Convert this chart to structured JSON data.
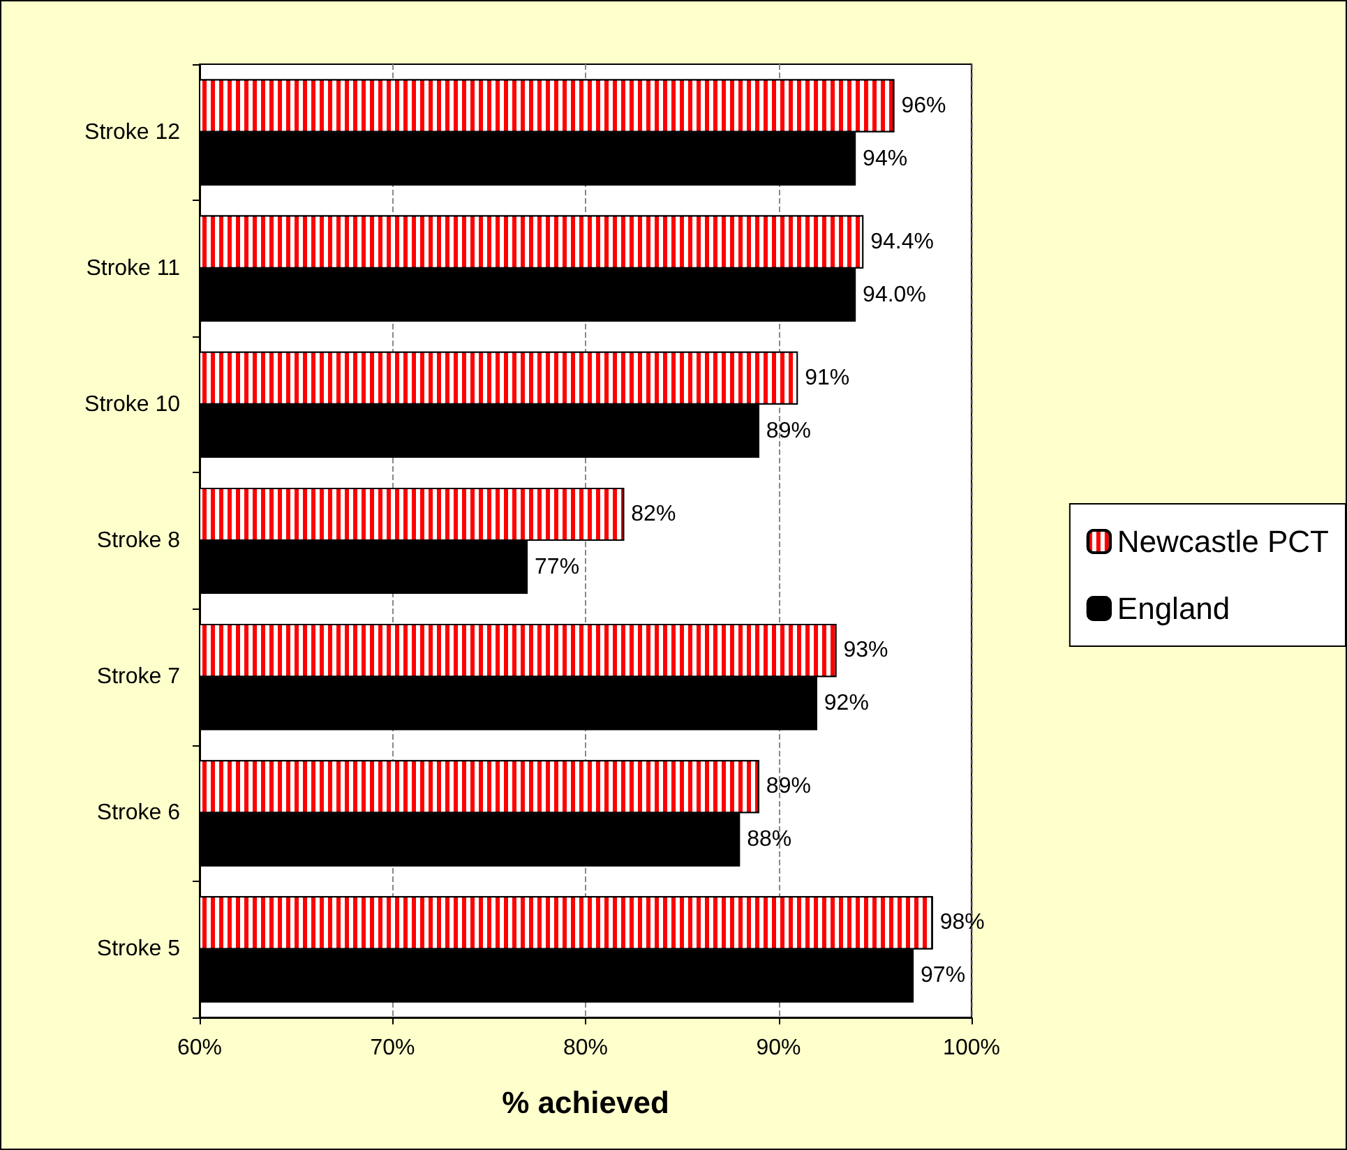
{
  "chart_data": {
    "type": "bar",
    "orientation": "horizontal",
    "xlabel": "% achieved",
    "categories": [
      "Stroke 12",
      "Stroke 11",
      "Stroke 10",
      "Stroke 8",
      "Stroke 7",
      "Stroke 6",
      "Stroke 5"
    ],
    "series": [
      {
        "name": "Newcastle PCT",
        "color": "#ff0000",
        "values": [
          96,
          94.4,
          91,
          82,
          93,
          89,
          98
        ],
        "value_labels": [
          "96%",
          "94.4%",
          "91%",
          "82%",
          "93%",
          "89%",
          "98%"
        ]
      },
      {
        "name": "England",
        "color": "#000000",
        "values": [
          94,
          94,
          89,
          77,
          92,
          88,
          97
        ],
        "value_labels": [
          "94%",
          "94.0%",
          "89%",
          "77%",
          "92%",
          "88%",
          "97%"
        ]
      }
    ],
    "xlim": [
      60,
      100
    ],
    "xticks": [
      {
        "value": 60,
        "label": "60%"
      },
      {
        "value": 70,
        "label": "70%"
      },
      {
        "value": 80,
        "label": "80%"
      },
      {
        "value": 90,
        "label": "90%"
      },
      {
        "value": 100,
        "label": "100%"
      }
    ],
    "grid": "x",
    "legend": "right"
  }
}
